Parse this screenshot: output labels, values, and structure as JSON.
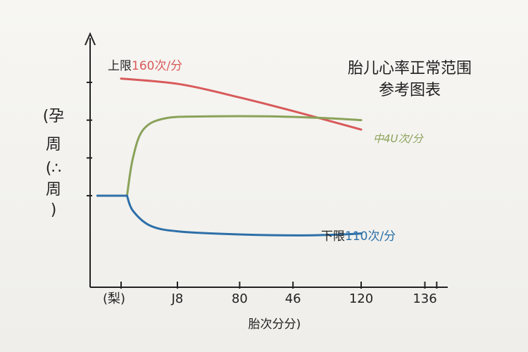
{
  "chart_data": {
    "type": "line",
    "title_lines": [
      "胎儿心率正常范围",
      "参考图表"
    ],
    "xlabel": "胎次分分)",
    "ylabel_lines": [
      "(孕",
      "周",
      "(∴",
      "周",
      ")"
    ],
    "x_ticks": [
      {
        "x": 0,
        "label": "(梨)"
      },
      {
        "x": 38,
        "label": "J8"
      },
      {
        "x": 80,
        "label": "80"
      },
      {
        "x": 116,
        "label": "46"
      },
      {
        "x": 162,
        "label": "120"
      },
      {
        "x": 205,
        "label": "136"
      }
    ],
    "extra_x_minor_ticks": [
      213
    ],
    "y_ticks": [
      100,
      120,
      140,
      160
    ],
    "xlim": [
      -16,
      220
    ],
    "ylim": [
      75,
      178
    ],
    "series": [
      {
        "name": "上限160次/分",
        "label_prefix": "上限",
        "label_value": "160次/分",
        "color": "#d85a5a",
        "x": [
          0,
          40,
          80,
          120,
          162
        ],
        "y": [
          162,
          159,
          152,
          144,
          135
        ]
      },
      {
        "name": "中40次/分",
        "label_text": "中4U次/分",
        "color": "#8aa259",
        "x": [
          4,
          8,
          15,
          30,
          60,
          100,
          140,
          162
        ],
        "y": [
          100,
          120,
          135,
          141,
          142,
          142,
          141,
          140
        ]
      },
      {
        "name": "下限110次/分",
        "label_prefix": "下限",
        "label_value": "110次/分",
        "color": "#2d6fa8",
        "x": [
          -16,
          4,
          8,
          20,
          40,
          80,
          120,
          150,
          162
        ],
        "y": [
          100,
          100,
          92,
          84,
          81,
          79.5,
          79,
          79.5,
          80
        ]
      }
    ]
  }
}
